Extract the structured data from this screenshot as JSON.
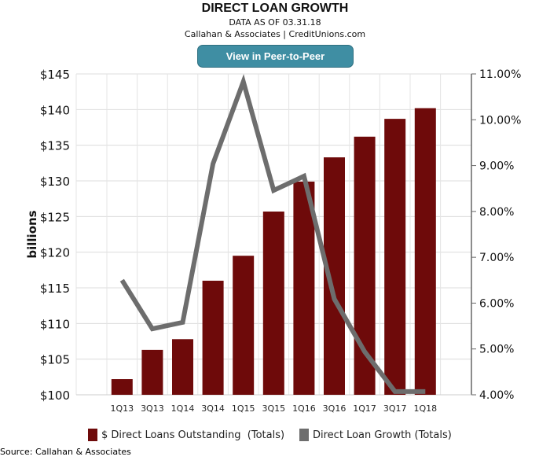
{
  "header": {
    "title": "DIRECT LOAN GROWTH",
    "subtitle": "DATA AS OF 03.31.18",
    "attribution": "Callahan & Associates | CreditUnions.com",
    "button_label": "View in Peer-to-Peer"
  },
  "footer": {
    "source": "Source: Callahan & Associates"
  },
  "colors": {
    "bars": "#6e0a0a",
    "line": "#6d6d6d",
    "button": "#3f8ea3"
  },
  "chart_data": {
    "type": "bar+line",
    "title": "DIRECT LOAN GROWTH",
    "categories": [
      "1Q13",
      "3Q13",
      "1Q14",
      "3Q14",
      "1Q15",
      "3Q15",
      "1Q16",
      "3Q16",
      "1Q17",
      "3Q17",
      "1Q18"
    ],
    "ylabel": "billions",
    "ylim": [
      100,
      145
    ],
    "y_ticks": [
      "$100",
      "$105",
      "$110",
      "$115",
      "$120",
      "$125",
      "$130",
      "$135",
      "$140",
      "$145"
    ],
    "y2lim": [
      4,
      11
    ],
    "y2_ticks": [
      "4.00%",
      "5.00%",
      "6.00%",
      "7.00%",
      "8.00%",
      "9.00%",
      "10.00%",
      "11.00%"
    ],
    "series": [
      {
        "name": "$ Direct Loans Outstanding  (Totals)",
        "type": "bar",
        "axis": "left",
        "values": [
          102.2,
          106.3,
          107.8,
          116.0,
          119.5,
          125.7,
          129.9,
          133.3,
          136.2,
          138.7,
          140.2
        ]
      },
      {
        "name": "Direct Loan Growth (Totals)",
        "type": "line",
        "axis": "right",
        "values": [
          6.5,
          5.44,
          5.58,
          9.04,
          10.83,
          8.46,
          8.77,
          6.09,
          4.94,
          4.07,
          4.07
        ]
      }
    ],
    "grid": true,
    "legend": "bottom"
  }
}
